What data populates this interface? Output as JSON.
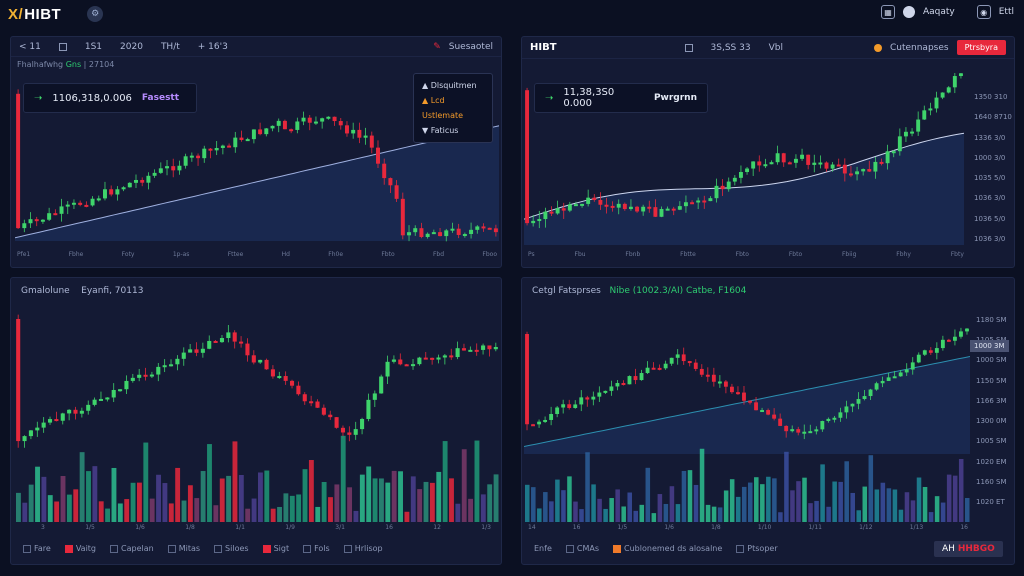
{
  "topbar": {
    "logo_mark": "X/",
    "logo_text": "HIBT",
    "account_label": "Aaqaty",
    "user_label": "Ettl"
  },
  "panels": {
    "top_left": {
      "tabs": [
        "< 11",
        "1S1",
        "2020",
        "TH/t",
        "+ 16'3"
      ],
      "action_label": "Suesaotel",
      "subtitle": "Fhalhafwhg",
      "subtitle_accent": "Gns",
      "subtitle_extra": "| 27104",
      "price": "1106,318,0.006",
      "price_tag": "Fasestt",
      "legend": [
        "Dlsquitmen",
        "Lcd Ustlemate",
        "Faticus"
      ],
      "x_ticks": [
        "Pfe1",
        "Fbhe",
        "Foty",
        "1p-as",
        "Fttee",
        "Hd",
        "Fh0e",
        "Fbto",
        "Fbd",
        "Fboo"
      ],
      "title": "Gmalolune",
      "title_extra": "Eyanfi, 70113",
      "x_ticks_bottom": [
        "3",
        "1/5",
        "1/6",
        "1/8",
        "1/1",
        "1/9",
        "3/1",
        "16",
        "12",
        "1/3"
      ],
      "legend_bottom": [
        "Fare",
        "Vaitg",
        "Capelan",
        "Mitas",
        "Siloes",
        "Sigt",
        "Fols",
        "Hrlisop"
      ]
    },
    "top_right": {
      "title": "HIBT",
      "tabs": [
        "3S,SS 33",
        "Vbl"
      ],
      "action_label": "Cutennapses",
      "action_button": "Ptrsbyra",
      "price": "11,38,3S0 0.000",
      "price_tag": "Pwrgrnn",
      "y_ticks": [
        "1350 310",
        "1640 8710",
        "1336 3/0",
        "1000 3/0",
        "1035 5/0",
        "1036 3/0",
        "1036 5/0",
        "1036 3/0"
      ],
      "x_ticks": [
        "Ps",
        "Fbu",
        "Fbnb",
        "Fbtte",
        "Fbto",
        "Fbto",
        "Fbiig",
        "Fbhy",
        "Fbty"
      ]
    },
    "bottom_right": {
      "title": "Cetgl Fatsprses",
      "title_accent": "Nibe (1002.3/AI) Catbe, F1604",
      "y_ticks": [
        "1180 SM",
        "1105 SM",
        "1000 SM",
        "1150 5M",
        "1166 3M",
        "1300 0M",
        "1005 SM",
        "1020 EM",
        "1160 SM",
        "1020 ET"
      ],
      "price_flag": "1000 3M",
      "x_ticks": [
        "14",
        "16",
        "1/5",
        "1/6",
        "1/8",
        "1/10",
        "1/11",
        "1/12",
        "1/13",
        "16"
      ],
      "legend_bottom": [
        "Enfe",
        "CMAs",
        "Cublonemed ds alosalne",
        "Ptsoper"
      ],
      "bottom_pill_a": "AH",
      "bottom_pill_b": "HHBGO"
    }
  },
  "colors": {
    "bull": "#3fd46b",
    "bear": "#e8283c",
    "accent": "#e8283c",
    "background": "#0b1022"
  }
}
